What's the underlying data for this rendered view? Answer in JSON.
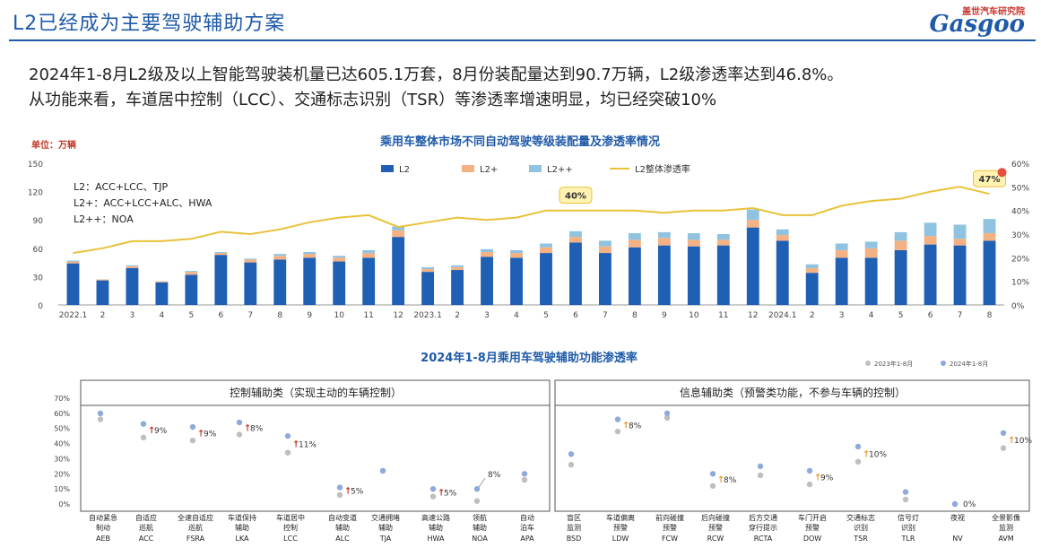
{
  "header": {
    "title": "L2已经成为主要驾驶辅助方案",
    "logo_cn": "盖世汽车研究院",
    "logo_en": "Gasgoo"
  },
  "summary": {
    "line1": "2024年1-8月L2级及以上智能驾驶装机量已达605.1万套，8月份装配量达到90.7万辆，L2级渗透率达到46.8%。",
    "line2": "从功能来看，车道居中控制（LCC）、交通标志识别（TSR）等渗透率增速明显，均已经突破10%"
  },
  "colors": {
    "l2": "#1f5fb4",
    "l2plus": "#f4b183",
    "l2pp": "#8fc3e0",
    "rate": "#e8c23a",
    "title_blue": "#1f5aa8",
    "dot_2023": "#bfbfbf",
    "dot_2024": "#8ea9db",
    "arrow_red": "#c0392b",
    "arrow_orange": "#e59b2a"
  },
  "chart_data": [
    {
      "type": "bar",
      "stacked": true,
      "title": "乘用车整体市场不同自动驾驶等级装配量及渗透率情况",
      "unit_label": "单位：万辆",
      "notes": [
        "L2：ACC+LCC、TJP",
        "L2+：ACC+LCC+ALC、HWA",
        "L2++：NOA"
      ],
      "categories": [
        "2022.1",
        "2",
        "3",
        "4",
        "5",
        "6",
        "7",
        "8",
        "9",
        "10",
        "11",
        "12",
        "2023.1",
        "2",
        "3",
        "4",
        "5",
        "6",
        "7",
        "8",
        "9",
        "10",
        "11",
        "12",
        "2024.1",
        "2",
        "3",
        "4",
        "5",
        "6",
        "7",
        "8"
      ],
      "ylim": [
        0,
        150
      ],
      "yticks": [
        0,
        30,
        60,
        90,
        120,
        150
      ],
      "y2lim": [
        0,
        60
      ],
      "y2ticks": [
        "0%",
        "10%",
        "20%",
        "30%",
        "40%",
        "50%",
        "60%"
      ],
      "series": [
        {
          "name": "L2",
          "values": [
            44,
            26,
            39,
            24,
            32,
            53,
            45,
            48,
            50,
            46,
            50,
            72,
            35,
            37,
            51,
            50,
            55,
            66,
            55,
            61,
            63,
            62,
            63,
            82,
            68,
            34,
            50,
            50,
            58,
            64,
            63,
            68
          ]
        },
        {
          "name": "L2+",
          "values": [
            2,
            1,
            2,
            1,
            3,
            2,
            3,
            4,
            4,
            4,
            5,
            7,
            3,
            3,
            5,
            5,
            6,
            6,
            7,
            8,
            8,
            7,
            6,
            8,
            6,
            5,
            8,
            10,
            10,
            9,
            7,
            8
          ]
        },
        {
          "name": "L2++",
          "values": [
            1,
            0,
            1,
            0,
            1,
            1,
            1,
            2,
            2,
            2,
            3,
            4,
            2,
            2,
            3,
            3,
            4,
            6,
            6,
            7,
            6,
            7,
            6,
            11,
            6,
            4,
            7,
            7,
            9,
            14,
            15,
            15
          ]
        },
        {
          "name": "L2整体渗透率",
          "values": [
            22,
            24,
            27,
            27,
            28,
            31,
            30,
            32,
            35,
            37,
            38,
            33,
            35,
            37,
            36,
            37,
            40,
            40,
            40,
            40,
            39,
            40,
            40,
            41,
            38,
            38,
            42,
            44,
            45,
            48,
            50,
            47
          ]
        }
      ],
      "annotations": [
        "40%",
        "47%"
      ]
    },
    {
      "type": "scatter",
      "title": "2024年1-8月乘用车驾驶辅助功能渗透率",
      "legend": [
        "2023年1-8月",
        "2024年1-8月"
      ],
      "groups": [
        "控制辅助类（实现主动的车辆控制）",
        "信息辅助类（预警类功能，不参与车辆的控制）"
      ],
      "yticks": [
        "0%",
        "10%",
        "20%",
        "30%",
        "40%",
        "50%",
        "60%",
        "70%"
      ],
      "ylim": [
        0,
        70
      ],
      "functions": [
        {
          "label1": "自动紧急",
          "label2": "制动",
          "code": "AEB",
          "v2023": 56,
          "v2024": 60,
          "delta": ""
        },
        {
          "label1": "自适应",
          "label2": "巡航",
          "code": "ACC",
          "v2023": 44,
          "v2024": 53,
          "delta": "9%"
        },
        {
          "label1": "全速自适应",
          "label2": "巡航",
          "code": "FSRA",
          "v2023": 42,
          "v2024": 51,
          "delta": "9%"
        },
        {
          "label1": "车道保持",
          "label2": "辅助",
          "code": "LKA",
          "v2023": 46,
          "v2024": 54,
          "delta": "8%"
        },
        {
          "label1": "车道居中",
          "label2": "控制",
          "code": "LCC",
          "v2023": 34,
          "v2024": 45,
          "delta": "11%"
        },
        {
          "label1": "自动变道",
          "label2": "辅助",
          "code": "ALC",
          "v2023": 6,
          "v2024": 11,
          "delta": "5%"
        },
        {
          "label1": "交通拥堵",
          "label2": "辅助",
          "code": "TJA",
          "v2023": 22,
          "v2024": 22,
          "delta": ""
        },
        {
          "label1": "高速公路",
          "label2": "辅助",
          "code": "HWA",
          "v2023": 5,
          "v2024": 10,
          "delta": "5%"
        },
        {
          "label1": "领航",
          "label2": "辅助",
          "code": "NOA",
          "v2023": 2,
          "v2024": 10,
          "delta": "8%"
        },
        {
          "label1": "自动",
          "label2": "泊车",
          "code": "APA",
          "v2023": 16,
          "v2024": 20,
          "delta": ""
        },
        {
          "label1": "盲区",
          "label2": "监测",
          "code": "BSD",
          "v2023": 26,
          "v2024": 33,
          "delta": ""
        },
        {
          "label1": "车道偏离",
          "label2": "预警",
          "code": "LDW",
          "v2023": 48,
          "v2024": 56,
          "delta": "8%"
        },
        {
          "label1": "前向碰撞",
          "label2": "预警",
          "code": "FCW",
          "v2023": 57,
          "v2024": 60,
          "delta": ""
        },
        {
          "label1": "后向碰撞",
          "label2": "预警",
          "code": "RCW",
          "v2023": 12,
          "v2024": 20,
          "delta": "8%"
        },
        {
          "label1": "后方交通",
          "label2": "穿行提示",
          "code": "RCTA",
          "v2023": 19,
          "v2024": 25,
          "delta": ""
        },
        {
          "label1": "车门开启",
          "label2": "预警",
          "code": "DOW",
          "v2023": 13,
          "v2024": 22,
          "delta": "9%"
        },
        {
          "label1": "交通标志",
          "label2": "识别",
          "code": "TSR",
          "v2023": 28,
          "v2024": 38,
          "delta": "10%"
        },
        {
          "label1": "信号灯",
          "label2": "识别",
          "code": "TLR",
          "v2023": 3,
          "v2024": 8,
          "delta": ""
        },
        {
          "label1": "夜视",
          "label2": "",
          "code": "NV",
          "v2023": 0,
          "v2024": 0,
          "delta": "0%"
        },
        {
          "label1": "全景影像",
          "label2": "监测",
          "code": "AVM",
          "v2023": 37,
          "v2024": 47,
          "delta": "10%"
        }
      ]
    }
  ]
}
